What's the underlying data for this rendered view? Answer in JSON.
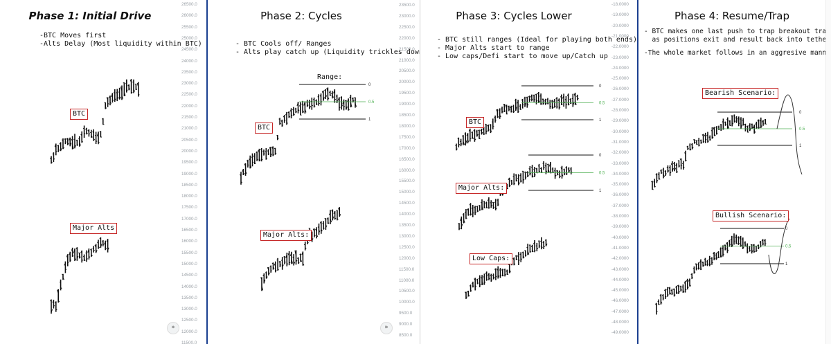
{
  "colors": {
    "divider": "#1a3f8f",
    "box": "#c62828",
    "guide": "#4caf50",
    "axis_text": "#9aa0a6",
    "bar": "#111111"
  },
  "panels": [
    {
      "title": "Phase 1: Initial Drive",
      "notes": [
        "-BTC Moves first",
        "-Alts Delay (Most liquidity within BTC)"
      ],
      "labels": {
        "btc": "BTC",
        "alts": "Major Alts"
      },
      "axis_ticks": [
        "26500.0",
        "26000.0",
        "25500.0",
        "25000.0",
        "24500.0",
        "24000.0",
        "23500.0",
        "23000.0",
        "22500.0",
        "22000.0",
        "21500.0",
        "21000.0",
        "20500.0",
        "20000.0",
        "19500.0",
        "19000.0",
        "18500.0",
        "18000.0",
        "17500.0",
        "17000.0",
        "16500.0",
        "16000.0",
        "15500.0",
        "15000.0",
        "14500.0",
        "14000.0",
        "13500.0",
        "13000.0",
        "12500.0",
        "12000.0",
        "11500.0"
      ],
      "nav_icon": "»"
    },
    {
      "title": "Phase 2: Cycles",
      "notes": [
        "- BTC Cools off/ Ranges",
        "- Alts play catch up (Liquidity trickles down)"
      ],
      "labels": {
        "range": "Range:",
        "btc": "BTC",
        "alts": "Major Alts:"
      },
      "levels": [
        "0",
        "0.5",
        "1"
      ],
      "axis_ticks": [
        "23500.0",
        "23000.0",
        "22500.0",
        "22000.0",
        "21500.0",
        "21000.0",
        "20500.0",
        "20000.0",
        "19500.0",
        "19000.0",
        "18500.0",
        "18000.0",
        "17500.0",
        "17000.0",
        "16500.0",
        "16000.0",
        "15500.0",
        "15000.0",
        "14500.0",
        "14000.0",
        "13500.0",
        "13000.0",
        "12500.0",
        "12000.0",
        "11500.0",
        "11000.0",
        "10500.0",
        "10000.0",
        "9500.0",
        "9000.0",
        "8500.0"
      ],
      "nav_icon": "»"
    },
    {
      "title": "Phase 3: Cycles Lower",
      "notes": [
        "- BTC still ranges (Ideal for playing both ends)",
        "- Major Alts start to range",
        "- Low caps/Defi start to move up/Catch up"
      ],
      "labels": {
        "btc": "BTC",
        "alts": "Major Alts:",
        "lowcaps": "Low Caps:"
      },
      "levels": [
        "0",
        "0.5",
        "1"
      ],
      "axis_ticks": [
        "-18.0000",
        "-19.0000",
        "-20.0000",
        "-21.0000",
        "-22.0000",
        "-23.0000",
        "-24.0000",
        "-25.0000",
        "-26.0000",
        "-27.0000",
        "-28.0000",
        "-29.0000",
        "-30.0000",
        "-31.0000",
        "-32.0000",
        "-33.0000",
        "-34.0000",
        "-35.0000",
        "-36.0000",
        "-37.0000",
        "-38.0000",
        "-39.0000",
        "-40.0000",
        "-41.0000",
        "-42.0000",
        "-43.0000",
        "-44.0000",
        "-45.0000",
        "-46.0000",
        "-47.0000",
        "-48.0000",
        "-49.0000"
      ]
    },
    {
      "title": "Phase 4: Resume/Trap",
      "notes": [
        "- BTC makes one last push to trap breakout traders",
        "  as positions exit and result back into tether",
        "",
        "-The whole market follows in an aggresive manner"
      ],
      "labels": {
        "bear": "Bearish Scenario:",
        "bull": "Bullish Scenario:"
      },
      "levels": [
        "0",
        "0.5",
        "1"
      ]
    }
  ],
  "chart_data": {
    "type": "candlestick-schematic",
    "title": "",
    "panels": [
      "Phase 1: Initial Drive",
      "Phase 2: Cycles",
      "Phase 3: Cycles Lower",
      "Phase 4: Resume/Trap"
    ],
    "fib_levels": [
      0,
      0.5,
      1
    ],
    "series": [
      {
        "name": "BTC",
        "phase_1": [
          19200,
          19800,
          20400,
          20100,
          20500,
          20300,
          20200,
          20400,
          20600,
          20500,
          20300,
          20700,
          20600,
          21000,
          20800,
          20600,
          20400,
          21800,
          22100,
          22000,
          22200,
          22300,
          22500,
          22400,
          22600,
          22700,
          22900,
          22600,
          22500,
          22700
        ]
      },
      {
        "name": "Major Alts",
        "phase_1": [
          13200,
          13300,
          14200,
          14800,
          15600,
          15300,
          15500,
          15400,
          15500,
          15700,
          15500,
          15600,
          15900,
          15700,
          15500
        ]
      }
    ]
  }
}
